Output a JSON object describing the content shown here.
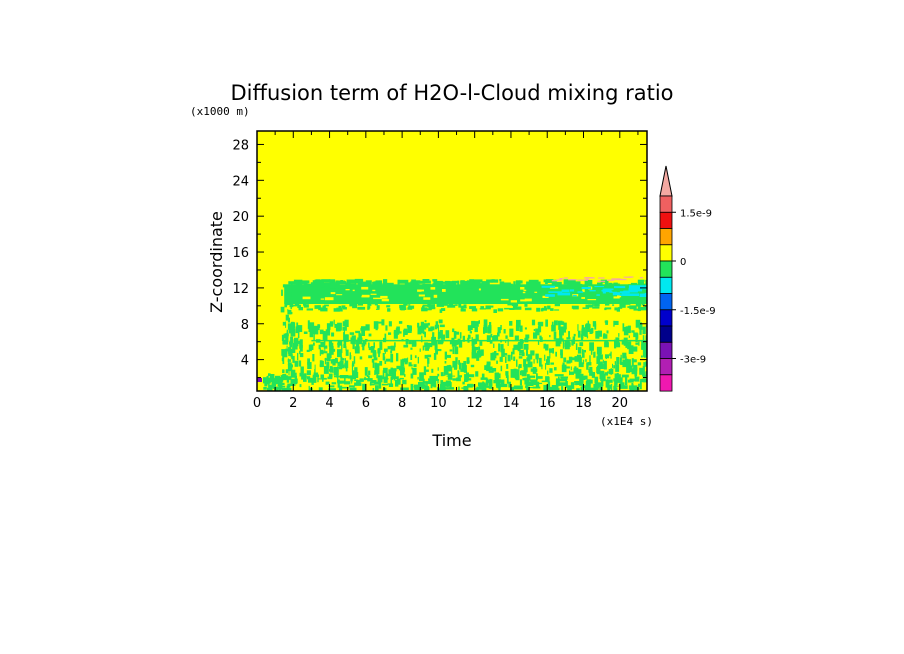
{
  "chart_data": {
    "type": "heatmap",
    "title": "Diffusion term of H2O-l-Cloud mixing ratio",
    "xlabel": "Time",
    "ylabel": "Z-coordinate",
    "x_unit": "(x1E4 s)",
    "y_unit": "(x1000 m)",
    "xlim": [
      0,
      21.5
    ],
    "ylim": [
      0.5,
      29.5
    ],
    "x_ticks": [
      0,
      2,
      4,
      6,
      8,
      10,
      12,
      14,
      16,
      18,
      20
    ],
    "y_ticks": [
      4,
      8,
      12,
      16,
      20,
      24,
      28
    ],
    "grid": false,
    "background_level": "0 (yellow)",
    "regions": [
      {
        "name": "cloud band (green)",
        "level": "-5e-10 to 0",
        "x": [
          1.5,
          21.5
        ],
        "y": [
          10.2,
          12.8
        ],
        "color": "#22e35a"
      },
      {
        "name": "cloud band cyan patches",
        "level": "-1e-9 to -5e-10",
        "x": [
          15.5,
          21.5
        ],
        "y": [
          11.2,
          12.3
        ],
        "color": "#00e8f0"
      },
      {
        "name": "lower speckled region (green)",
        "level": "-5e-10 to 0",
        "x": [
          0.3,
          21.5
        ],
        "y": [
          0.8,
          8.5
        ],
        "color": "#22e35a"
      },
      {
        "name": "upper positive fringe (pink)",
        "level": "> 1.5e-9",
        "x": [
          16,
          21.5
        ],
        "y": [
          12.8,
          13.3
        ],
        "color": "#f4a9a2"
      }
    ],
    "colorbar": {
      "colors": [
        "#f4a9a2",
        "#f06060",
        "#f01010",
        "#ffa500",
        "#ffff00",
        "#22e35a",
        "#00e8f0",
        "#0064f0",
        "#0000cc",
        "#00008b",
        "#7a12b5",
        "#b11fb3",
        "#f018b0"
      ],
      "labels": [
        "1.5e-9",
        "0",
        "-1.5e-9",
        "-3e-9"
      ]
    }
  }
}
